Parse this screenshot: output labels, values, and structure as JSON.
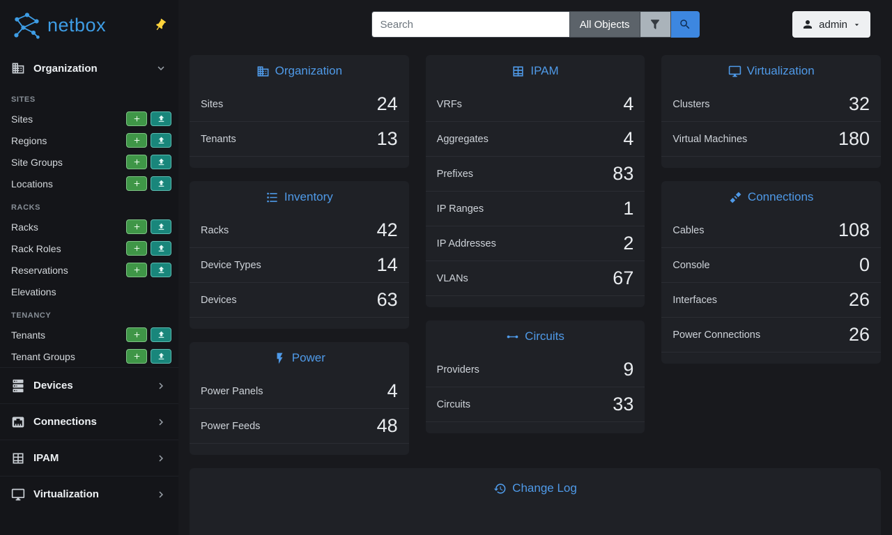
{
  "brand": {
    "name": "netbox",
    "accent": "#3e9de5"
  },
  "topbar": {
    "search_placeholder": "Search",
    "scope_label": "All Objects",
    "user_label": "admin"
  },
  "sidebar": {
    "organization": {
      "label": "Organization",
      "icon": "building",
      "groups": [
        {
          "header": "SITES",
          "items": [
            {
              "label": "Sites",
              "add": true,
              "import": true
            },
            {
              "label": "Regions",
              "add": true,
              "import": true
            },
            {
              "label": "Site Groups",
              "add": true,
              "import": true
            },
            {
              "label": "Locations",
              "add": true,
              "import": true
            }
          ]
        },
        {
          "header": "RACKS",
          "items": [
            {
              "label": "Racks",
              "add": true,
              "import": true
            },
            {
              "label": "Rack Roles",
              "add": true,
              "import": true
            },
            {
              "label": "Reservations",
              "add": true,
              "import": true
            },
            {
              "label": "Elevations",
              "add": false,
              "import": false
            }
          ]
        },
        {
          "header": "TENANCY",
          "items": [
            {
              "label": "Tenants",
              "add": true,
              "import": true
            },
            {
              "label": "Tenant Groups",
              "add": true,
              "import": true
            }
          ]
        }
      ]
    },
    "collapsed": [
      {
        "label": "Devices",
        "icon": "server"
      },
      {
        "label": "Connections",
        "icon": "ethernet"
      },
      {
        "label": "IPAM",
        "icon": "table"
      },
      {
        "label": "Virtualization",
        "icon": "monitor"
      }
    ]
  },
  "columns": [
    [
      {
        "title": "Organization",
        "icon": "building",
        "rows": [
          {
            "label": "Sites",
            "value": "24"
          },
          {
            "label": "Tenants",
            "value": "13"
          }
        ]
      },
      {
        "title": "Inventory",
        "icon": "list",
        "rows": [
          {
            "label": "Racks",
            "value": "42"
          },
          {
            "label": "Device Types",
            "value": "14"
          },
          {
            "label": "Devices",
            "value": "63"
          }
        ]
      },
      {
        "title": "Power",
        "icon": "flash",
        "rows": [
          {
            "label": "Power Panels",
            "value": "4"
          },
          {
            "label": "Power Feeds",
            "value": "48"
          }
        ]
      }
    ],
    [
      {
        "title": "IPAM",
        "icon": "table",
        "rows": [
          {
            "label": "VRFs",
            "value": "4"
          },
          {
            "label": "Aggregates",
            "value": "4"
          },
          {
            "label": "Prefixes",
            "value": "83"
          },
          {
            "label": "IP Ranges",
            "value": "1"
          },
          {
            "label": "IP Addresses",
            "value": "2"
          },
          {
            "label": "VLANs",
            "value": "67"
          }
        ]
      },
      {
        "title": "Circuits",
        "icon": "transit",
        "rows": [
          {
            "label": "Providers",
            "value": "9"
          },
          {
            "label": "Circuits",
            "value": "33"
          }
        ]
      }
    ],
    [
      {
        "title": "Virtualization",
        "icon": "monitor",
        "rows": [
          {
            "label": "Clusters",
            "value": "32"
          },
          {
            "label": "Virtual Machines",
            "value": "180"
          }
        ]
      },
      {
        "title": "Connections",
        "icon": "cable",
        "rows": [
          {
            "label": "Cables",
            "value": "108"
          },
          {
            "label": "Console",
            "value": "0"
          },
          {
            "label": "Interfaces",
            "value": "26"
          },
          {
            "label": "Power Connections",
            "value": "26"
          }
        ]
      }
    ]
  ],
  "changelog": {
    "title": "Change Log",
    "icon": "history"
  }
}
